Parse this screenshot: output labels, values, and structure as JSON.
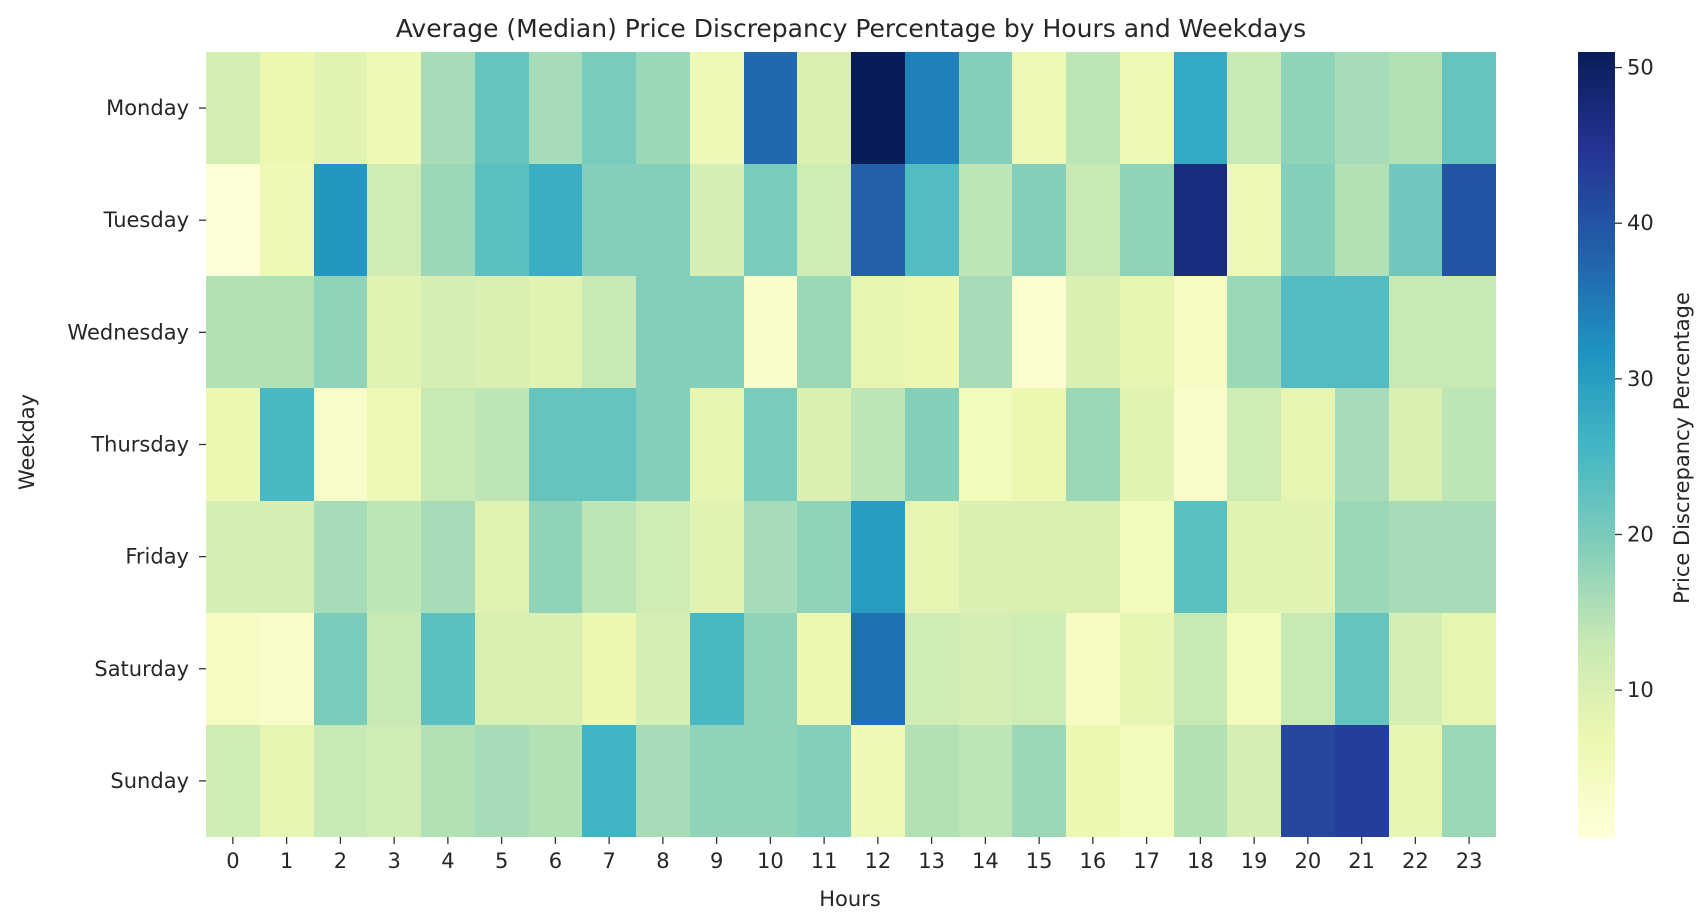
{
  "chart_data": {
    "type": "heatmap",
    "title": "Average (Median) Price Discrepancy Percentage by Hours and Weekdays",
    "xlabel": "Hours",
    "ylabel": "Weekday",
    "x": [
      "0",
      "1",
      "2",
      "3",
      "4",
      "5",
      "6",
      "7",
      "8",
      "9",
      "10",
      "11",
      "12",
      "13",
      "14",
      "15",
      "16",
      "17",
      "18",
      "19",
      "20",
      "21",
      "22",
      "23"
    ],
    "y": [
      "Monday",
      "Tuesday",
      "Wednesday",
      "Thursday",
      "Friday",
      "Saturday",
      "Sunday"
    ],
    "values": [
      [
        11,
        7,
        9,
        6,
        16,
        22,
        16,
        20,
        17,
        6,
        37,
        10,
        51,
        34,
        19,
        6,
        14,
        6,
        28,
        13,
        18,
        16,
        15,
        22
      ],
      [
        1,
        6,
        31,
        12,
        17,
        23,
        27,
        19,
        19,
        11,
        20,
        12,
        38,
        24,
        14,
        19,
        13,
        18,
        47,
        6,
        19,
        15,
        21,
        40
      ],
      [
        15,
        15,
        18,
        9,
        11,
        10,
        9,
        13,
        19,
        19,
        3,
        17,
        8,
        7,
        16,
        2,
        10,
        8,
        4,
        17,
        24,
        24,
        13,
        13
      ],
      [
        7,
        25,
        3,
        6,
        13,
        14,
        22,
        22,
        19,
        8,
        20,
        10,
        14,
        19,
        5,
        7,
        17,
        9,
        3,
        12,
        8,
        16,
        10,
        14
      ],
      [
        11,
        11,
        16,
        14,
        16,
        9,
        18,
        14,
        12,
        9,
        16,
        18,
        30,
        8,
        10,
        10,
        10,
        5,
        23,
        9,
        9,
        17,
        16,
        16
      ],
      [
        4,
        3,
        20,
        13,
        23,
        10,
        10,
        7,
        11,
        25,
        18,
        7,
        36,
        12,
        11,
        12,
        4,
        8,
        13,
        5,
        13,
        22,
        11,
        8
      ],
      [
        12,
        8,
        13,
        12,
        15,
        16,
        15,
        26,
        16,
        18,
        18,
        19,
        6,
        15,
        14,
        17,
        7,
        5,
        15,
        11,
        42,
        43,
        8,
        17
      ]
    ],
    "vmin": 0.5,
    "vmax": 51,
    "colormap": "YlGnBu",
    "colorbar": {
      "label": "Price Discrepancy Percentage",
      "ticks": [
        10,
        20,
        30,
        40,
        50
      ],
      "tick_labels": [
        "10",
        "20",
        "30",
        "40",
        "50"
      ]
    }
  }
}
